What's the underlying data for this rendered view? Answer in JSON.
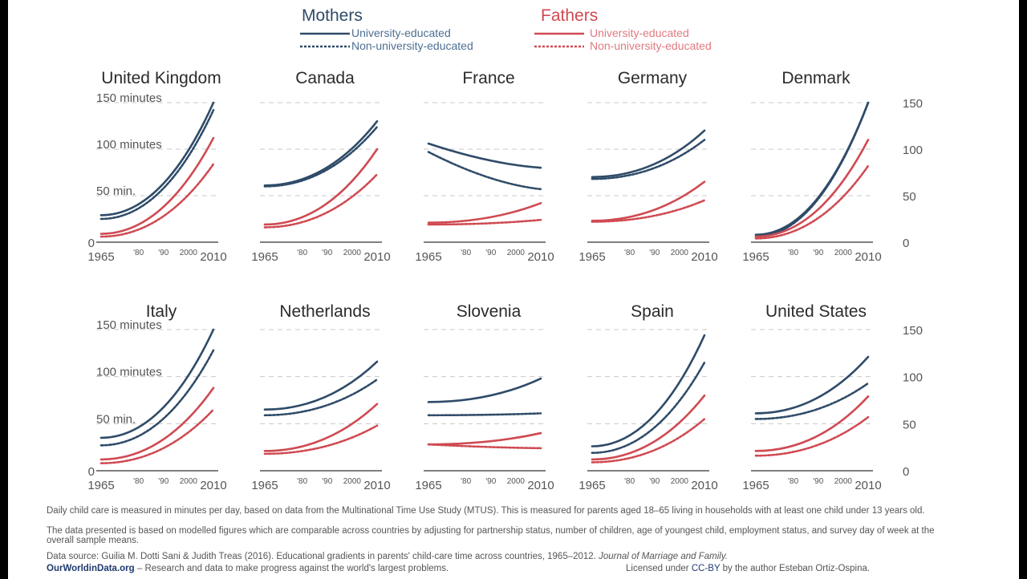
{
  "colors": {
    "mothers": "#2f4b68",
    "fathers": "#cf4a52",
    "fathers_label": "#e07a80",
    "grid": "#c8c8c8",
    "axis": "#555555"
  },
  "legend": {
    "mothers_title": "Mothers",
    "fathers_title": "Fathers",
    "university": "University-educated",
    "non_university": "Non-university-educated"
  },
  "notes": {
    "line1": "Daily child care is measured in minutes per day, based on data from the Multinational Time Use Study (MTUS). This is measured for parents aged 18–65 living in households with at least one child under 13 years old.",
    "line2": "The data presented is based on modelled figures which are comparable across countries by adjusting for partnership status, number of children, age of youngest child, employment status, and survey day of week at the overall sample means.",
    "source_prefix": "Data source: Guilia M. Dotti Sani & Judith Treas (2016). Educational gradients in parents' child-care time across countries, 1965–2012.",
    "source_journal": "Journal of Marriage and Family.",
    "owid_name": "OurWorldinData.org",
    "owid_tagline": "– Research and data to make progress against the world's largest problems.",
    "license_prefix": "Licensed under",
    "license_name": "CC-BY",
    "license_suffix": "by the author Esteban Ortiz-Ospina."
  },
  "chart_data": {
    "type": "line",
    "ylim": [
      0,
      150
    ],
    "xlim": [
      1965,
      2010
    ],
    "x_ticks": [
      "1965",
      "'80",
      "'90",
      "2000",
      "2010"
    ],
    "y_ticks_left": [
      "150 minutes",
      "100 minutes",
      "50 min.",
      "0"
    ],
    "y_ticks_right": [
      "150",
      "100",
      "50",
      "0"
    ],
    "series_names": [
      "Mothers – University-educated",
      "Mothers – Non-university-educated",
      "Fathers – University-educated",
      "Fathers – Non-university-educated"
    ],
    "panels": [
      {
        "country": "United Kingdom",
        "series": {
          "mu": [
            29,
            150
          ],
          "mn": [
            25,
            142
          ],
          "fu": [
            9,
            112
          ],
          "fn": [
            6,
            84
          ]
        }
      },
      {
        "country": "Canada",
        "series": {
          "mu": [
            61,
            130
          ],
          "mn": [
            60,
            124
          ],
          "fu": [
            19,
            100
          ],
          "fn": [
            16,
            73
          ]
        }
      },
      {
        "country": "France",
        "series": {
          "mu": [
            106,
            80
          ],
          "mn": [
            97,
            57
          ],
          "fu": [
            21,
            42
          ],
          "fn": [
            19,
            24
          ]
        }
      },
      {
        "country": "Germany",
        "series": {
          "mu": [
            70,
            120
          ],
          "mn": [
            68,
            110
          ],
          "fu": [
            23,
            65
          ],
          "fn": [
            22,
            45
          ]
        }
      },
      {
        "country": "Denmark",
        "series": {
          "mu": [
            8,
            150
          ],
          "mn": [
            6,
            150
          ],
          "fu": [
            6,
            110
          ],
          "fn": [
            4,
            82
          ]
        }
      },
      {
        "country": "Italy",
        "series": {
          "mu": [
            35,
            150
          ],
          "mn": [
            27,
            128
          ],
          "fu": [
            12,
            88
          ],
          "fn": [
            8,
            65
          ]
        }
      },
      {
        "country": "Netherlands",
        "series": {
          "mu": [
            65,
            116
          ],
          "mn": [
            59,
            97
          ],
          "fu": [
            21,
            71
          ],
          "fn": [
            18,
            48
          ]
        }
      },
      {
        "country": "Slovenia",
        "series": {
          "mu": [
            73,
            98
          ],
          "mn": [
            59,
            61
          ],
          "fu": [
            28,
            40
          ],
          "fn": [
            28,
            24
          ]
        }
      },
      {
        "country": "Spain",
        "series": {
          "mu": [
            26,
            144
          ],
          "mn": [
            19,
            115
          ],
          "fu": [
            12,
            80
          ],
          "fn": [
            9,
            55
          ]
        }
      },
      {
        "country": "United States",
        "series": {
          "mu": [
            61,
            121
          ],
          "mn": [
            55,
            93
          ],
          "fu": [
            21,
            79
          ],
          "fn": [
            16,
            57
          ]
        }
      }
    ]
  }
}
